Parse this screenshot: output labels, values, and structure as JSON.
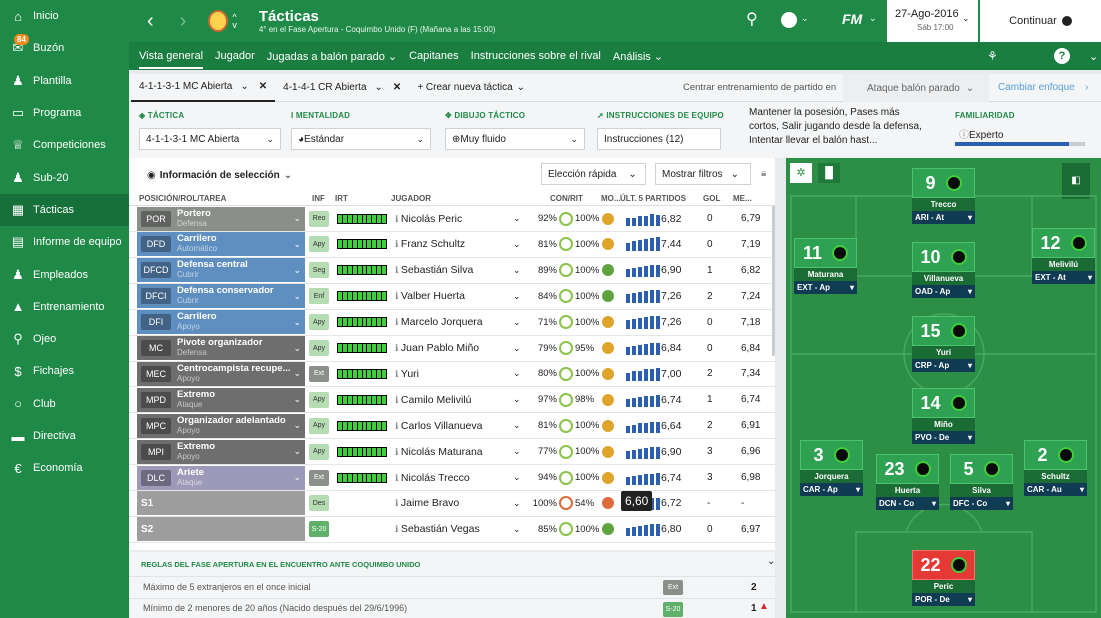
{
  "sidebar": {
    "items": [
      {
        "label": "Inicio",
        "icon": "home-icon"
      },
      {
        "label": "Buzón",
        "icon": "inbox-icon",
        "badge": "84"
      },
      {
        "label": "Plantilla",
        "icon": "squad-icon"
      },
      {
        "label": "Programa",
        "icon": "calendar-icon"
      },
      {
        "label": "Competiciones",
        "icon": "trophy-icon"
      },
      {
        "label": "Sub-20",
        "icon": "youth-icon"
      },
      {
        "label": "Tácticas",
        "icon": "tactics-icon"
      },
      {
        "label": "Informe de equipo",
        "icon": "report-icon"
      },
      {
        "label": "Empleados",
        "icon": "staff-icon"
      },
      {
        "label": "Entrenamiento",
        "icon": "training-icon"
      },
      {
        "label": "Ojeo",
        "icon": "search-icon"
      },
      {
        "label": "Fichajes",
        "icon": "transfers-icon"
      },
      {
        "label": "Club",
        "icon": "club-icon"
      },
      {
        "label": "Directiva",
        "icon": "board-icon"
      },
      {
        "label": "Economía",
        "icon": "finance-icon"
      }
    ]
  },
  "header": {
    "title": "Tácticas",
    "subtitle": "4° en el Fase Apertura - Coquimbo Unido (F) (Mañana a las 15:00)",
    "logo_text": "FM",
    "date": "27-Ago-2016",
    "day": "Sáb 17:00",
    "continue": "Continuar"
  },
  "subnav": [
    "Vista general",
    "Jugador",
    "Jugadas a balón parado ⌄",
    "Capitanes",
    "Instrucciones sobre el rival",
    "Análisis ⌄"
  ],
  "tabs": {
    "t1": "4-1-1-3-1 MC Abierta",
    "t2": "4-1-4-1 CR Abierta",
    "create": "+ Crear nueva táctica",
    "focus_label": "Centrar entrenamiento de partido en",
    "focus_value": "Ataque balón parado",
    "change_focus": "Cambiar enfoque"
  },
  "config": {
    "tactic_label": "TÁCTICA",
    "tactic": "4-1-1-3-1 MC Abierta",
    "mentality_label": "MENTALIDAD",
    "mentality": "Estándar",
    "shape_label": "DIBUJO TÁCTICO",
    "shape": "Muy fluido",
    "instr_label": "INSTRUCCIONES DE EQUIPO",
    "instr": "Instrucciones (12)",
    "instr_desc": "Mantener la posesión, Pases más cortos, Salir jugando desde la defensa, Intentar llevar el balón hast...",
    "fam_label": "FAMILIARIDAD",
    "fam": "Experto"
  },
  "grid": {
    "selection": "Información de selección",
    "quick": "Elección rápida",
    "filters": "Mostrar filtros",
    "cols": {
      "pos": "POSICIÓN/ROL/TAREA",
      "inf": "INF",
      "irt": "IRT",
      "player": "JUGADOR",
      "con": "CON/RIT",
      "mo": "MO...",
      "last5": "ÚLT. 5 PARTIDOS",
      "gol": "GOL",
      "me": "ME..."
    }
  },
  "rows": [
    {
      "pos": "POR",
      "role": "Portero",
      "duty": "Defensa",
      "inf": "Reo",
      "player": "Nicolás Peric",
      "con": "92%",
      "rit": "100%",
      "avg": "6,82",
      "gol": "0",
      "me": "6,79",
      "color": "#8a8f8a",
      "mo": "#e0a42b"
    },
    {
      "pos": "DFD",
      "role": "Carrilero",
      "duty": "Automático",
      "inf": "Apy",
      "player": "Franz Schultz",
      "con": "81%",
      "rit": "100%",
      "avg": "7,44",
      "gol": "0",
      "me": "7,19",
      "color": "#5f8fc0",
      "mo": "#e0a42b"
    },
    {
      "pos": "DFCD",
      "role": "Defensa central",
      "duty": "Cubrir",
      "inf": "Seg",
      "player": "Sebastián Silva",
      "con": "89%",
      "rit": "100%",
      "avg": "6,90",
      "gol": "1",
      "me": "6,82",
      "color": "#5f8fc0",
      "mo": "#5fa33f"
    },
    {
      "pos": "DFCI",
      "role": "Defensa conservador",
      "duty": "Cubrir",
      "inf": "Enf",
      "player": "Valber Huerta",
      "con": "84%",
      "rit": "100%",
      "avg": "7,26",
      "gol": "2",
      "me": "7,24",
      "color": "#5f8fc0",
      "mo": "#5fa33f"
    },
    {
      "pos": "DFI",
      "role": "Carrilero",
      "duty": "Apoyo",
      "inf": "Apy",
      "player": "Marcelo Jorquera",
      "con": "71%",
      "rit": "100%",
      "avg": "7,26",
      "gol": "0",
      "me": "7,18",
      "color": "#5f8fc0",
      "mo": "#e0a42b"
    },
    {
      "pos": "MC",
      "role": "Pivote organizador",
      "duty": "Defensa",
      "inf": "Apy",
      "player": "Juan Pablo Miño",
      "con": "79%",
      "rit": "95%",
      "avg": "6,84",
      "gol": "0",
      "me": "6,84",
      "color": "#6e6e6e",
      "mo": "#e0a42b"
    },
    {
      "pos": "MEC",
      "role": "Centrocampista recupe...",
      "duty": "Apoyo",
      "inf": "Ext",
      "player": "Yuri",
      "con": "80%",
      "rit": "100%",
      "avg": "7,00",
      "gol": "2",
      "me": "7,34",
      "color": "#6e6e6e",
      "mo": "#e0a42b"
    },
    {
      "pos": "MPD",
      "role": "Extremo",
      "duty": "Ataque",
      "inf": "Apy",
      "player": "Camilo Melivilú",
      "con": "97%",
      "rit": "98%",
      "avg": "6,74",
      "gol": "1",
      "me": "6,74",
      "color": "#6e6e6e",
      "mo": "#e0a42b"
    },
    {
      "pos": "MPC",
      "role": "Organizador adelantado",
      "duty": "Apoyo",
      "inf": "Apy",
      "player": "Carlos Villanueva",
      "con": "81%",
      "rit": "100%",
      "avg": "6,64",
      "gol": "2",
      "me": "6,91",
      "color": "#6e6e6e",
      "mo": "#e0a42b"
    },
    {
      "pos": "MPI",
      "role": "Extremo",
      "duty": "Apoyo",
      "inf": "Apy",
      "player": "Nicolás Maturana",
      "con": "77%",
      "rit": "100%",
      "avg": "6,90",
      "gol": "3",
      "me": "6,96",
      "color": "#6e6e6e",
      "mo": "#e0a42b"
    },
    {
      "pos": "DLC",
      "role": "Ariete",
      "duty": "Ataque",
      "inf": "Ext",
      "player": "Nicolás Trecco",
      "con": "94%",
      "rit": "100%",
      "avg": "6,74",
      "gol": "3",
      "me": "6,98",
      "color": "#9d99b8",
      "mo": "#e0a42b"
    },
    {
      "pos": "S1",
      "role": "",
      "duty": "",
      "inf": "Des",
      "player": "Jaime Bravo",
      "con": "100%",
      "rit": "54%",
      "avg": "6,72",
      "gol": "-",
      "me": "-",
      "color": "#9e9e9e",
      "mo": "#e06b3a",
      "tooltip": "6,60"
    },
    {
      "pos": "S2",
      "role": "",
      "duty": "",
      "inf": "S-20",
      "player": "Sebastián Vegas",
      "con": "85%",
      "rit": "100%",
      "avg": "6,80",
      "gol": "0",
      "me": "6,97",
      "color": "#9e9e9e",
      "mo": "#5fa33f"
    }
  ],
  "rules": {
    "title": "REGLAS DEL FASE APERTURA EN EL ENCUENTRO ANTE COQUIMBO UNIDO",
    "r1": "Máximo de 5 extranjeros en el once inicial",
    "r1_tag": "Ext",
    "r1_val": "2",
    "r2": "Mínimo de 2 menores de 20 años (Nacido después del 29/6/1996)",
    "r2_tag": "S-20",
    "r2_val": "1"
  },
  "pitch": {
    "players": [
      {
        "num": "9",
        "name": "Trecco",
        "role": "ARI - At",
        "gk": false
      },
      {
        "num": "11",
        "name": "Maturana",
        "role": "EXT - Ap",
        "gk": false
      },
      {
        "num": "10",
        "name": "Villanueva",
        "role": "OAD - Ap",
        "gk": false
      },
      {
        "num": "12",
        "name": "Melivilú",
        "role": "EXT - At",
        "gk": false
      },
      {
        "num": "15",
        "name": "Yuri",
        "role": "CRP - Ap",
        "gk": false
      },
      {
        "num": "14",
        "name": "Miño",
        "role": "PVO - De",
        "gk": false
      },
      {
        "num": "3",
        "name": "Jorquera",
        "role": "CAR - Ap",
        "gk": false
      },
      {
        "num": "23",
        "name": "Huerta",
        "role": "DCN - Co",
        "gk": false
      },
      {
        "num": "5",
        "name": "Silva",
        "role": "DFC - Co",
        "gk": false
      },
      {
        "num": "2",
        "name": "Schultz",
        "role": "CAR - Au",
        "gk": false
      },
      {
        "num": "22",
        "name": "Peric",
        "role": "POR - De",
        "gk": true
      }
    ]
  }
}
